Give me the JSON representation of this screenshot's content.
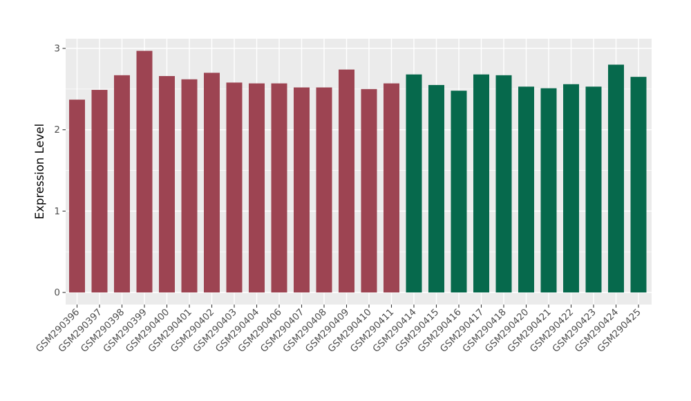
{
  "chart_data": {
    "type": "bar",
    "title": "",
    "xlabel": "",
    "ylabel": "Expression Level",
    "categories": [
      "GSM290396",
      "GSM290397",
      "GSM290398",
      "GSM290399",
      "GSM290400",
      "GSM290401",
      "GSM290402",
      "GSM290403",
      "GSM290404",
      "GSM290406",
      "GSM290407",
      "GSM290408",
      "GSM290409",
      "GSM290410",
      "GSM290411",
      "GSM290414",
      "GSM290415",
      "GSM290416",
      "GSM290417",
      "GSM290418",
      "GSM290420",
      "GSM290421",
      "GSM290422",
      "GSM290423",
      "GSM290424",
      "GSM290425"
    ],
    "values": [
      2.37,
      2.49,
      2.67,
      2.97,
      2.66,
      2.62,
      2.7,
      2.58,
      2.57,
      2.57,
      2.52,
      2.52,
      2.74,
      2.5,
      2.57,
      2.68,
      2.55,
      2.48,
      2.68,
      2.67,
      2.53,
      2.51,
      2.56,
      2.53,
      2.8,
      2.65
    ],
    "groups": [
      "A",
      "A",
      "A",
      "A",
      "A",
      "A",
      "A",
      "A",
      "A",
      "A",
      "A",
      "A",
      "A",
      "A",
      "A",
      "B",
      "B",
      "B",
      "B",
      "B",
      "B",
      "B",
      "B",
      "B",
      "B",
      "B"
    ],
    "group_colors": {
      "A": "#9D4452",
      "B": "#06694C"
    },
    "yticks": [
      0,
      1,
      2,
      3
    ],
    "minor_yticks": [
      0.5,
      1.5,
      2.5
    ],
    "ytick_labels": [
      "0",
      "1",
      "2",
      "3"
    ],
    "ylim": [
      0,
      3.12
    ],
    "grid": "major-and-minor-white-on-grey",
    "legend": "none",
    "panel_background": "#EBEBEB",
    "gridline_color": "#FFFFFF",
    "tick_mark_color": "#333333",
    "tick_label_color": "#4D4D4D",
    "axis_title_color": "#000000",
    "x_label_rotation_deg": 45
  }
}
